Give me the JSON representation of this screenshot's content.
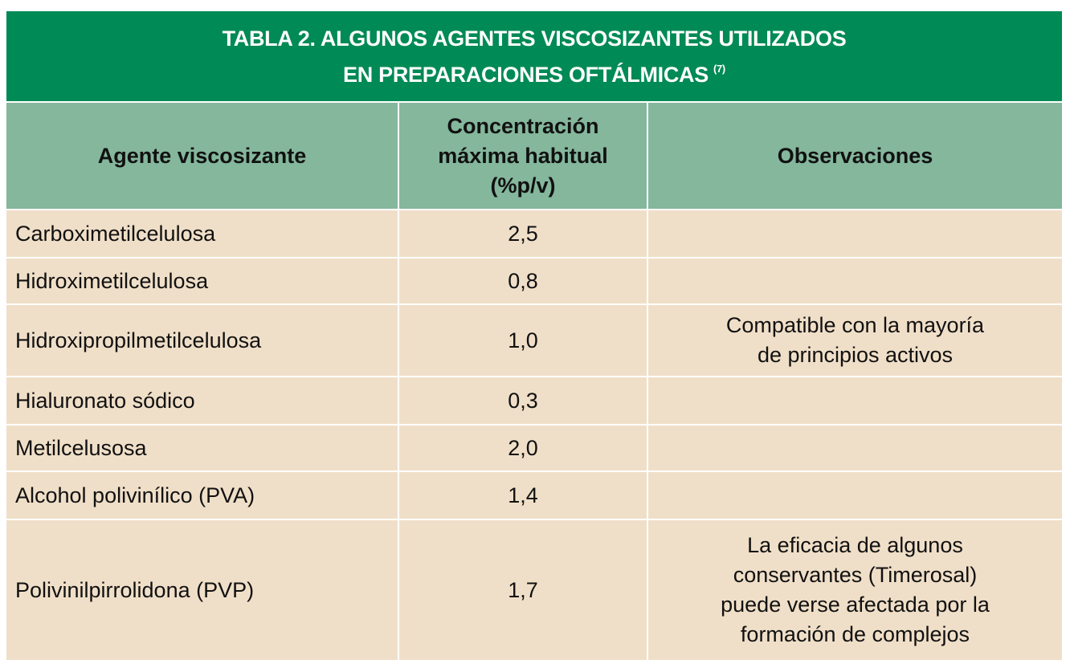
{
  "title": {
    "lines": [
      "TABLA 2. ALGUNOS AGENTES VISCOSIZANTES UTILIZADOS",
      "EN PREPARACIONES OFTÁLMICAS"
    ],
    "reference": "(7)"
  },
  "table": {
    "headers": [
      [
        "Agente viscosizante"
      ],
      [
        "Concentración",
        "máxima habitual",
        "(%p/v)"
      ],
      [
        "Observaciones"
      ]
    ],
    "rows": [
      {
        "agent": "Carboximetilcelulosa",
        "concentration": "2,5"
      },
      {
        "agent": "Hidroximetilcelulosa",
        "concentration": "0,8"
      },
      {
        "agent": "Hidroxipropilmetilcelulosa",
        "concentration": "1,0",
        "observations": [
          "Compatible con la mayoría",
          "de principios activos"
        ]
      },
      {
        "agent": "Hialuronato sódico",
        "concentration": "0,3"
      },
      {
        "agent": "Metilcelusosa",
        "concentration": "2,0"
      },
      {
        "agent": "Alcohol polivinílico (PVA)",
        "concentration": "1,4"
      },
      {
        "agent": "Polivinilpirrolidona (PVP)",
        "concentration": "1,7",
        "observations": [
          "La eficacia de algunos",
          "conservantes (Timerosal)",
          "puede verse afectada por la",
          "formación de complejos"
        ]
      }
    ]
  }
}
